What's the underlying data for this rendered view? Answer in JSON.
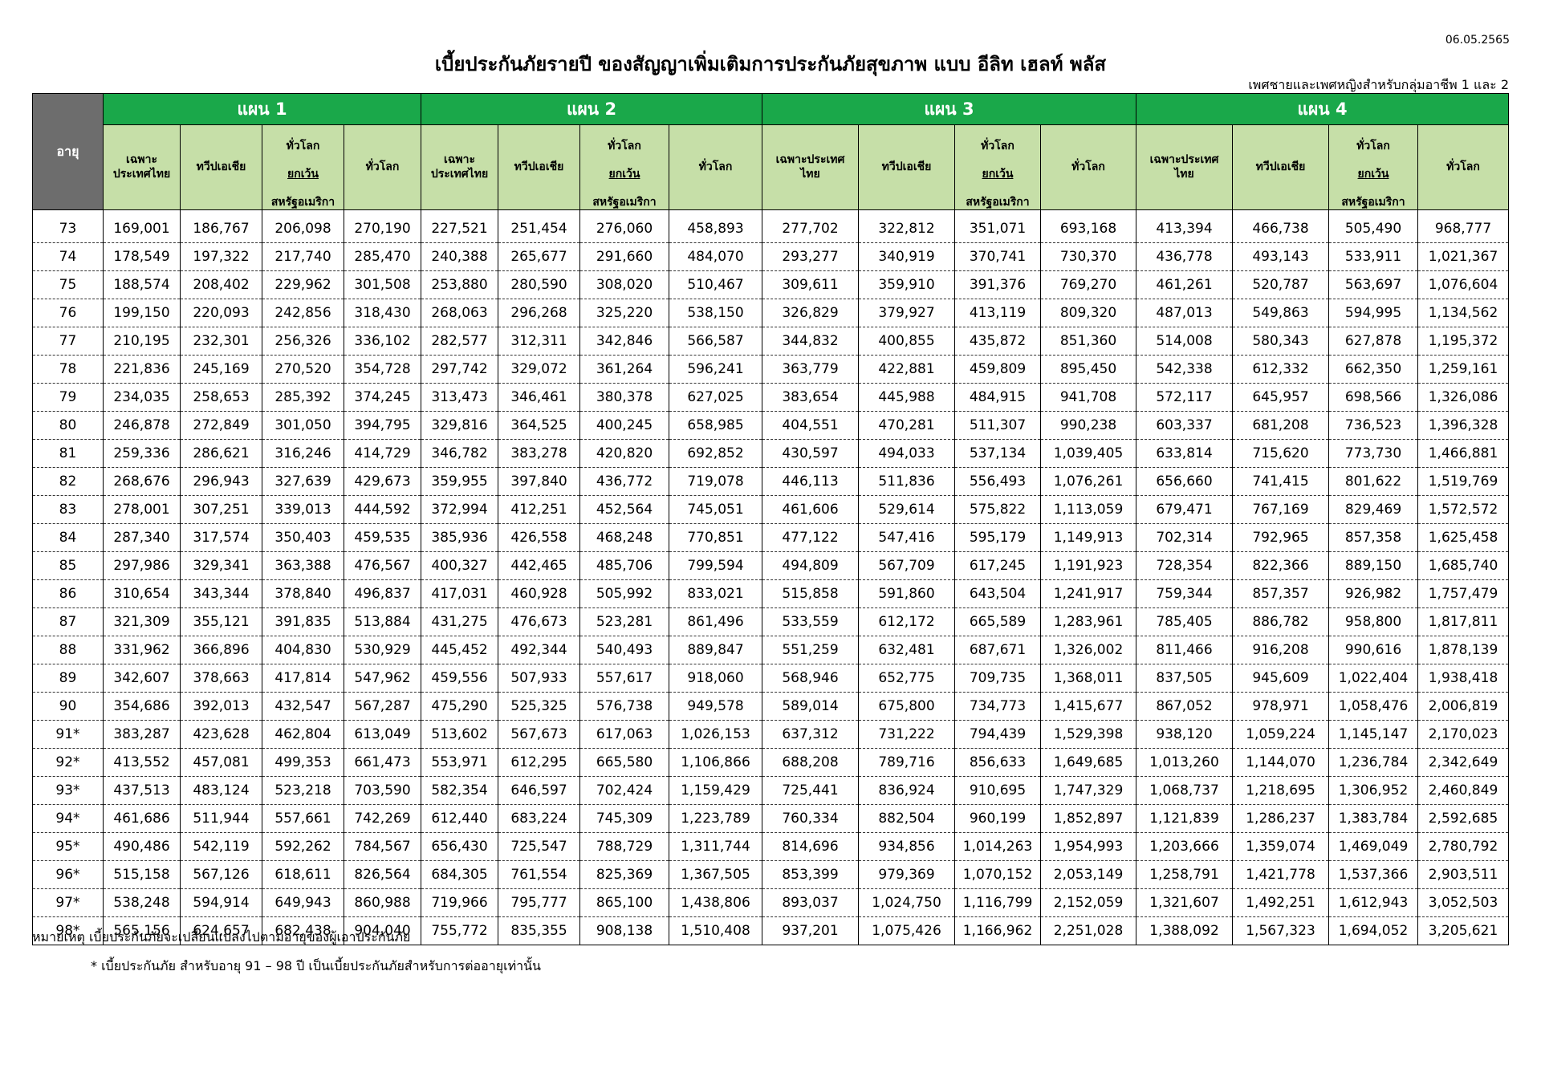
{
  "doc": {
    "date": "06.05.2565",
    "title": "เบี้ยประกันภัยรายปี ของสัญญาเพิ่มเติมการประกันภัยสุขภาพ แบบ อีลิท เฮลท์ พลัส",
    "subtitle": "เพศชายและเพศหญิงสำหรับกลุ่มอาชีพ 1 และ 2",
    "note1": "หมายเหตุ เบี้ยประกันภัยจะเปลี่ยนแปลงไปตามอายุของผู้เอาประกันภัย",
    "note2": "* เบี้ยประกันภัย สำหรับอายุ 91 – 98 ปี เป็นเบี้ยประกันภัยสำหรับการต่ออายุเท่านั้น"
  },
  "table": {
    "age_header": "อายุ",
    "plans": [
      "แผน 1",
      "แผน 2",
      "แผน 3",
      "แผน 4"
    ],
    "col_labels": {
      "thai_only_a": "เฉพาะ\nประเทศไทย",
      "thai_only_b": "เฉพาะประเทศ\nไทย",
      "asia": "ทวีปเอเชีย",
      "worldwide_ex_us_1": "ทั่วโลก",
      "worldwide_ex_us_2": "ยกเว้น",
      "worldwide_ex_us_3": "สหรัฐอเมริกา",
      "worldwide": "ทั่วโลก"
    },
    "rows": [
      [
        "73",
        "169,001",
        "186,767",
        "206,098",
        "270,190",
        "227,521",
        "251,454",
        "276,060",
        "458,893",
        "277,702",
        "322,812",
        "351,071",
        "693,168",
        "413,394",
        "466,738",
        "505,490",
        "968,777"
      ],
      [
        "74",
        "178,549",
        "197,322",
        "217,740",
        "285,470",
        "240,388",
        "265,677",
        "291,660",
        "484,070",
        "293,277",
        "340,919",
        "370,741",
        "730,370",
        "436,778",
        "493,143",
        "533,911",
        "1,021,367"
      ],
      [
        "75",
        "188,574",
        "208,402",
        "229,962",
        "301,508",
        "253,880",
        "280,590",
        "308,020",
        "510,467",
        "309,611",
        "359,910",
        "391,376",
        "769,270",
        "461,261",
        "520,787",
        "563,697",
        "1,076,604"
      ],
      [
        "76",
        "199,150",
        "220,093",
        "242,856",
        "318,430",
        "268,063",
        "296,268",
        "325,220",
        "538,150",
        "326,829",
        "379,927",
        "413,119",
        "809,320",
        "487,013",
        "549,863",
        "594,995",
        "1,134,562"
      ],
      [
        "77",
        "210,195",
        "232,301",
        "256,326",
        "336,102",
        "282,577",
        "312,311",
        "342,846",
        "566,587",
        "344,832",
        "400,855",
        "435,872",
        "851,360",
        "514,008",
        "580,343",
        "627,878",
        "1,195,372"
      ],
      [
        "78",
        "221,836",
        "245,169",
        "270,520",
        "354,728",
        "297,742",
        "329,072",
        "361,264",
        "596,241",
        "363,779",
        "422,881",
        "459,809",
        "895,450",
        "542,338",
        "612,332",
        "662,350",
        "1,259,161"
      ],
      [
        "79",
        "234,035",
        "258,653",
        "285,392",
        "374,245",
        "313,473",
        "346,461",
        "380,378",
        "627,025",
        "383,654",
        "445,988",
        "484,915",
        "941,708",
        "572,117",
        "645,957",
        "698,566",
        "1,326,086"
      ],
      [
        "80",
        "246,878",
        "272,849",
        "301,050",
        "394,795",
        "329,816",
        "364,525",
        "400,245",
        "658,985",
        "404,551",
        "470,281",
        "511,307",
        "990,238",
        "603,337",
        "681,208",
        "736,523",
        "1,396,328"
      ],
      [
        "81",
        "259,336",
        "286,621",
        "316,246",
        "414,729",
        "346,782",
        "383,278",
        "420,820",
        "692,852",
        "430,597",
        "494,033",
        "537,134",
        "1,039,405",
        "633,814",
        "715,620",
        "773,730",
        "1,466,881"
      ],
      [
        "82",
        "268,676",
        "296,943",
        "327,639",
        "429,673",
        "359,955",
        "397,840",
        "436,772",
        "719,078",
        "446,113",
        "511,836",
        "556,493",
        "1,076,261",
        "656,660",
        "741,415",
        "801,622",
        "1,519,769"
      ],
      [
        "83",
        "278,001",
        "307,251",
        "339,013",
        "444,592",
        "372,994",
        "412,251",
        "452,564",
        "745,051",
        "461,606",
        "529,614",
        "575,822",
        "1,113,059",
        "679,471",
        "767,169",
        "829,469",
        "1,572,572"
      ],
      [
        "84",
        "287,340",
        "317,574",
        "350,403",
        "459,535",
        "385,936",
        "426,558",
        "468,248",
        "770,851",
        "477,122",
        "547,416",
        "595,179",
        "1,149,913",
        "702,314",
        "792,965",
        "857,358",
        "1,625,458"
      ],
      [
        "85",
        "297,986",
        "329,341",
        "363,388",
        "476,567",
        "400,327",
        "442,465",
        "485,706",
        "799,594",
        "494,809",
        "567,709",
        "617,245",
        "1,191,923",
        "728,354",
        "822,366",
        "889,150",
        "1,685,740"
      ],
      [
        "86",
        "310,654",
        "343,344",
        "378,840",
        "496,837",
        "417,031",
        "460,928",
        "505,992",
        "833,021",
        "515,858",
        "591,860",
        "643,504",
        "1,241,917",
        "759,344",
        "857,357",
        "926,982",
        "1,757,479"
      ],
      [
        "87",
        "321,309",
        "355,121",
        "391,835",
        "513,884",
        "431,275",
        "476,673",
        "523,281",
        "861,496",
        "533,559",
        "612,172",
        "665,589",
        "1,283,961",
        "785,405",
        "886,782",
        "958,800",
        "1,817,811"
      ],
      [
        "88",
        "331,962",
        "366,896",
        "404,830",
        "530,929",
        "445,452",
        "492,344",
        "540,493",
        "889,847",
        "551,259",
        "632,481",
        "687,671",
        "1,326,002",
        "811,466",
        "916,208",
        "990,616",
        "1,878,139"
      ],
      [
        "89",
        "342,607",
        "378,663",
        "417,814",
        "547,962",
        "459,556",
        "507,933",
        "557,617",
        "918,060",
        "568,946",
        "652,775",
        "709,735",
        "1,368,011",
        "837,505",
        "945,609",
        "1,022,404",
        "1,938,418"
      ],
      [
        "90",
        "354,686",
        "392,013",
        "432,547",
        "567,287",
        "475,290",
        "525,325",
        "576,738",
        "949,578",
        "589,014",
        "675,800",
        "734,773",
        "1,415,677",
        "867,052",
        "978,971",
        "1,058,476",
        "2,006,819"
      ],
      [
        "91*",
        "383,287",
        "423,628",
        "462,804",
        "613,049",
        "513,602",
        "567,673",
        "617,063",
        "1,026,153",
        "637,312",
        "731,222",
        "794,439",
        "1,529,398",
        "938,120",
        "1,059,224",
        "1,145,147",
        "2,170,023"
      ],
      [
        "92*",
        "413,552",
        "457,081",
        "499,353",
        "661,473",
        "553,971",
        "612,295",
        "665,580",
        "1,106,866",
        "688,208",
        "789,716",
        "856,633",
        "1,649,685",
        "1,013,260",
        "1,144,070",
        "1,236,784",
        "2,342,649"
      ],
      [
        "93*",
        "437,513",
        "483,124",
        "523,218",
        "703,590",
        "582,354",
        "646,597",
        "702,424",
        "1,159,429",
        "725,441",
        "836,924",
        "910,695",
        "1,747,329",
        "1,068,737",
        "1,218,695",
        "1,306,952",
        "2,460,849"
      ],
      [
        "94*",
        "461,686",
        "511,944",
        "557,661",
        "742,269",
        "612,440",
        "683,224",
        "745,309",
        "1,223,789",
        "760,334",
        "882,504",
        "960,199",
        "1,852,897",
        "1,121,839",
        "1,286,237",
        "1,383,784",
        "2,592,685"
      ],
      [
        "95*",
        "490,486",
        "542,119",
        "592,262",
        "784,567",
        "656,430",
        "725,547",
        "788,729",
        "1,311,744",
        "814,696",
        "934,856",
        "1,014,263",
        "1,954,993",
        "1,203,666",
        "1,359,074",
        "1,469,049",
        "2,780,792"
      ],
      [
        "96*",
        "515,158",
        "567,126",
        "618,611",
        "826,564",
        "684,305",
        "761,554",
        "825,369",
        "1,367,505",
        "853,399",
        "979,369",
        "1,070,152",
        "2,053,149",
        "1,258,791",
        "1,421,778",
        "1,537,366",
        "2,903,511"
      ],
      [
        "97*",
        "538,248",
        "594,914",
        "649,943",
        "860,988",
        "719,966",
        "795,777",
        "865,100",
        "1,438,806",
        "893,037",
        "1,024,750",
        "1,116,799",
        "2,152,059",
        "1,321,607",
        "1,492,251",
        "1,612,943",
        "3,052,503"
      ],
      [
        "98*",
        "565,156",
        "624,657",
        "682,438",
        "904,040",
        "755,772",
        "835,355",
        "908,138",
        "1,510,408",
        "937,201",
        "1,075,426",
        "1,166,962",
        "2,251,028",
        "1,388,092",
        "1,567,323",
        "1,694,052",
        "3,205,621"
      ]
    ]
  },
  "colors": {
    "plan_header": "#1aa84a",
    "sub_header": "#c6dfa8",
    "age_header": "#6d6d6d"
  }
}
